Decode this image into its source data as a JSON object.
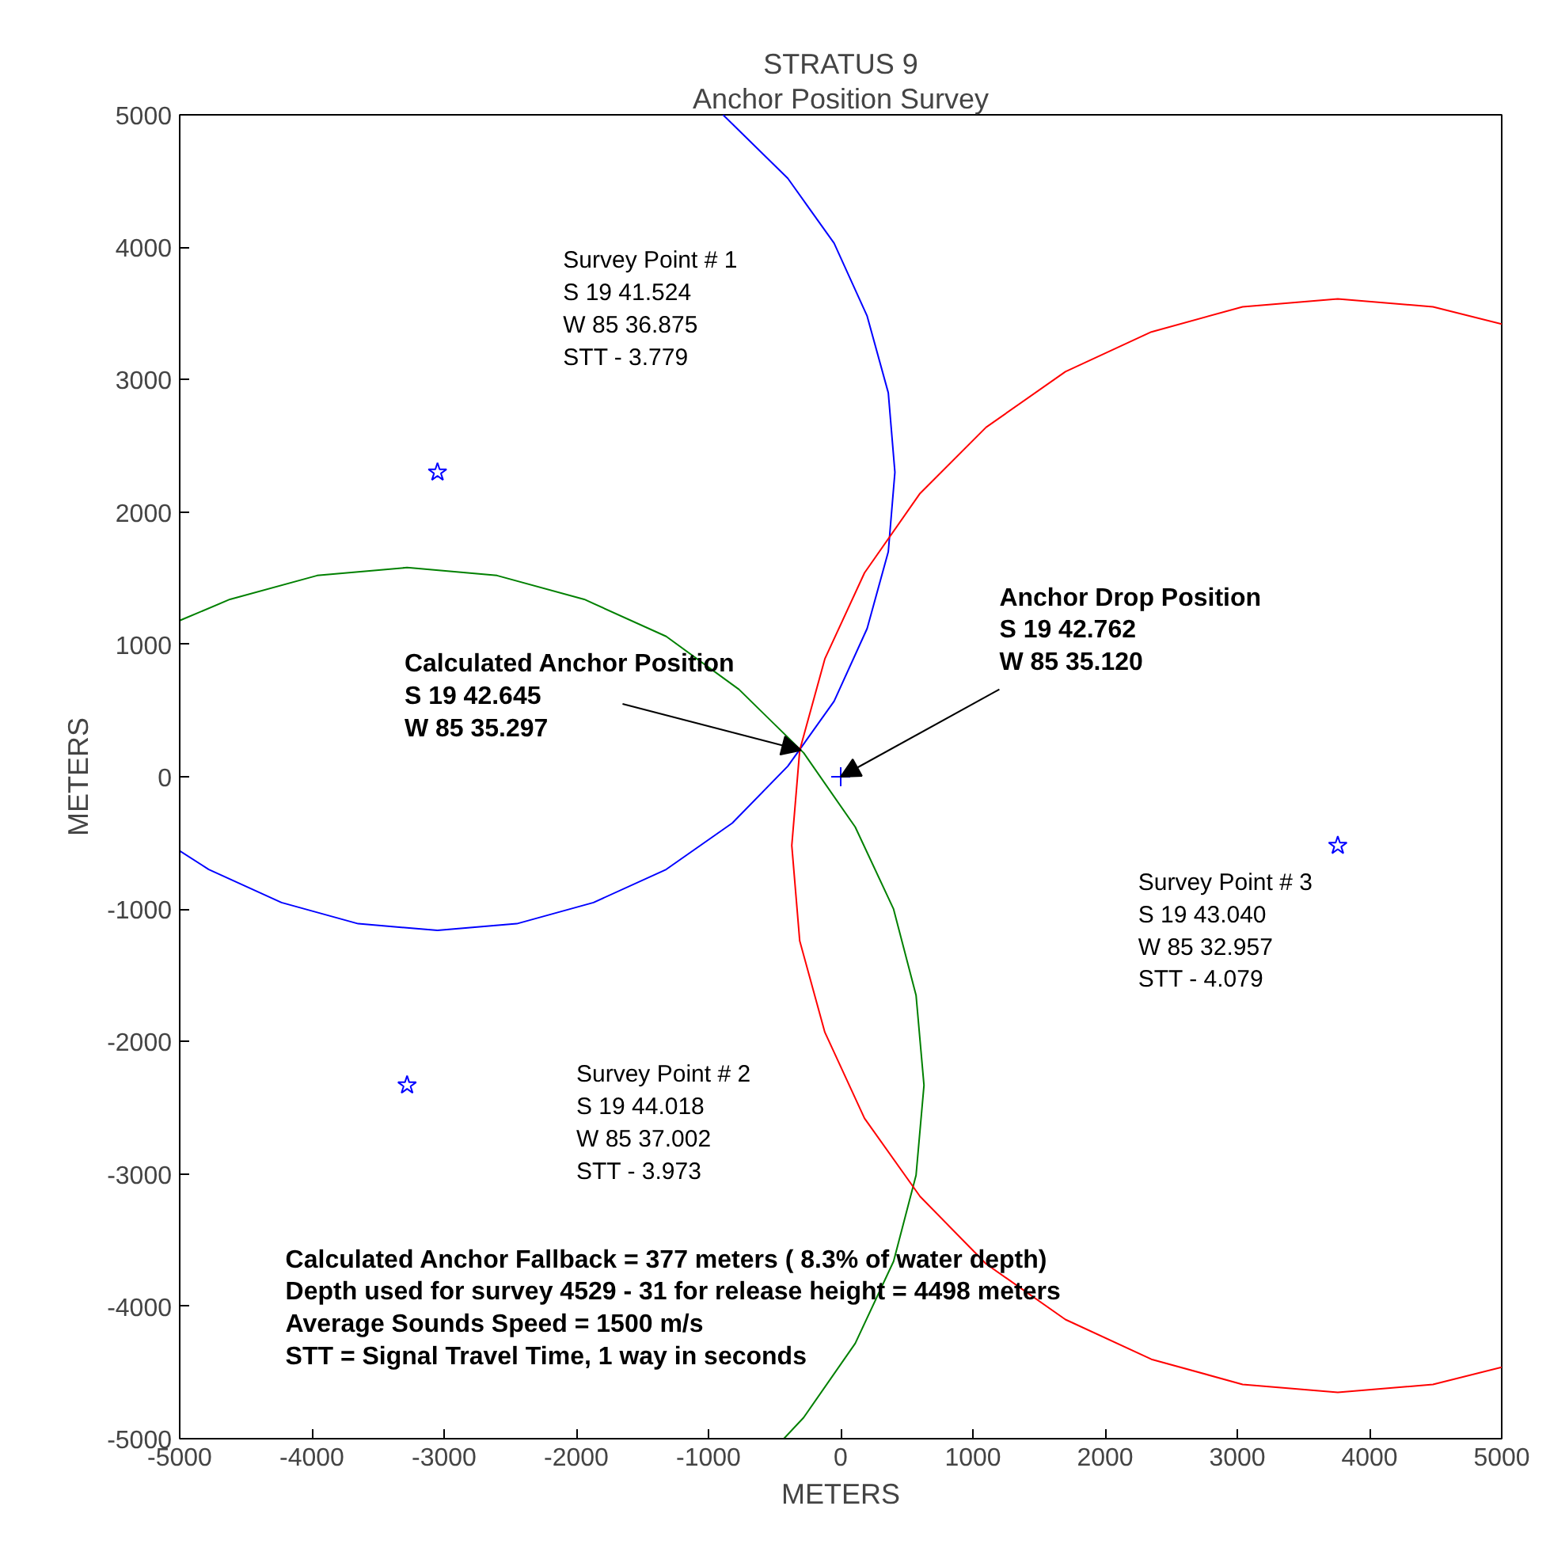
{
  "chart_data": {
    "type": "scatter",
    "title": "STRATUS 9",
    "subtitle": "Anchor Position Survey",
    "xlabel": "METERS",
    "ylabel": "METERS",
    "xlim": [
      -5000,
      5000
    ],
    "ylim": [
      -5000,
      5000
    ],
    "xticks": [
      -5000,
      -4000,
      -3000,
      -2000,
      -1000,
      0,
      1000,
      2000,
      3000,
      4000,
      5000
    ],
    "yticks": [
      -5000,
      -4000,
      -3000,
      -2000,
      -1000,
      0,
      1000,
      2000,
      3000,
      4000,
      5000
    ],
    "grid": false,
    "series": [
      {
        "type": "line",
        "color": "#0000ff",
        "marker": "none",
        "x": [
          -5000,
          -4780,
          -4230,
          -3650,
          -3050,
          -2450,
          -1870,
          -1320,
          -820,
          -400,
          -50,
          200,
          360,
          410,
          360,
          200,
          -50,
          -400,
          -890
        ],
        "values": [
          -560,
          -700,
          -950,
          -1110,
          -1160,
          -1110,
          -950,
          -700,
          -350,
          80,
          570,
          1120,
          1700,
          2300,
          2900,
          3480,
          4030,
          4520,
          5000
        ]
      },
      {
        "type": "line",
        "color": "#008000",
        "marker": "none",
        "x": [
          -5000,
          -4620,
          -3960,
          -3280,
          -2600,
          -1940,
          -1320,
          -770,
          -280,
          110,
          400,
          570,
          630,
          570,
          400,
          110,
          -280,
          -430
        ],
        "values": [
          1180,
          1340,
          1520,
          1580,
          1520,
          1340,
          1060,
          660,
          180,
          -380,
          -1000,
          -1650,
          -2330,
          -3010,
          -3660,
          -4280,
          -4840,
          -5000
        ]
      },
      {
        "type": "line",
        "color": "#ff0000",
        "marker": "none",
        "x": [
          5000,
          4480,
          3760,
          3040,
          2350,
          1700,
          1100,
          600,
          180,
          -120,
          -310,
          -370,
          -310,
          -120,
          180,
          600,
          1100,
          1700,
          2350,
          3040,
          3760,
          4480,
          5000
        ],
        "values": [
          3420,
          3550,
          3610,
          3550,
          3360,
          3060,
          2640,
          2140,
          1540,
          890,
          200,
          -520,
          -1240,
          -1930,
          -2580,
          -3170,
          -3680,
          -4100,
          -4400,
          -4590,
          -4650,
          -4590,
          -4460
        ]
      },
      {
        "color": "#0000ff",
        "marker": "star",
        "x": [
          -3050,
          -3280,
          3760
        ],
        "values": [
          2300,
          -2330,
          -520
        ]
      },
      {
        "color": "#0000ff",
        "marker": "cross",
        "x": [
          0
        ],
        "values": [
          0
        ]
      }
    ],
    "annotations": [
      "Survey Point # 1\nS 19 41.524\nW 85 36.875\nSTT -  3.779",
      "Survey Point # 2\nS 19 44.018\nW 85 37.002\nSTT -  3.973",
      "Survey Point # 3\nS 19 43.040\nW 85 32.957\nSTT -  4.079",
      {
        "text": "Calculated Anchor Position\nS 19 42.645\nW 85 35.297",
        "x": -300,
        "y": 200
      },
      {
        "text": "Anchor Drop Position\nS 19 42.762\nW 85 35.120",
        "x": 0,
        "y": 0
      },
      "Calculated Anchor Fallback = 377 meters ( 8.3% of water depth)\nDepth used for survey 4529 - 31 for release height = 4498 meters\nAverage Sounds Speed = 1500 m/s\nSTT = Signal Travel Time, 1 way in seconds"
    ]
  }
}
